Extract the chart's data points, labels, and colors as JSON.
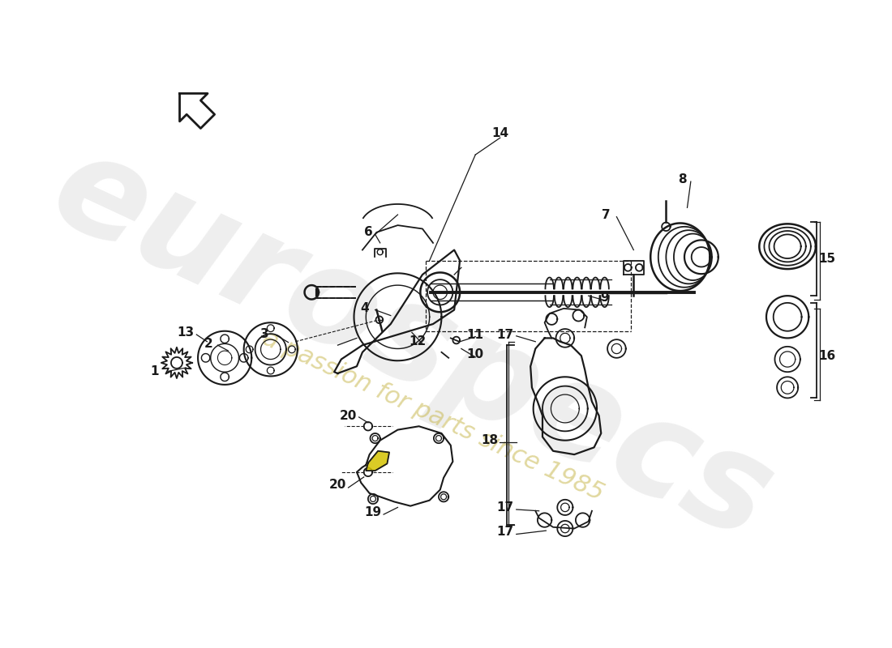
{
  "bg_color": "#ffffff",
  "lc": "#1a1a1a",
  "wm1": "eurospecs",
  "wm2": "a passion for parts since 1985",
  "figsize": [
    11.0,
    8.0
  ],
  "dpi": 100,
  "xlim": [
    0,
    1100
  ],
  "ylim": [
    0,
    800
  ]
}
